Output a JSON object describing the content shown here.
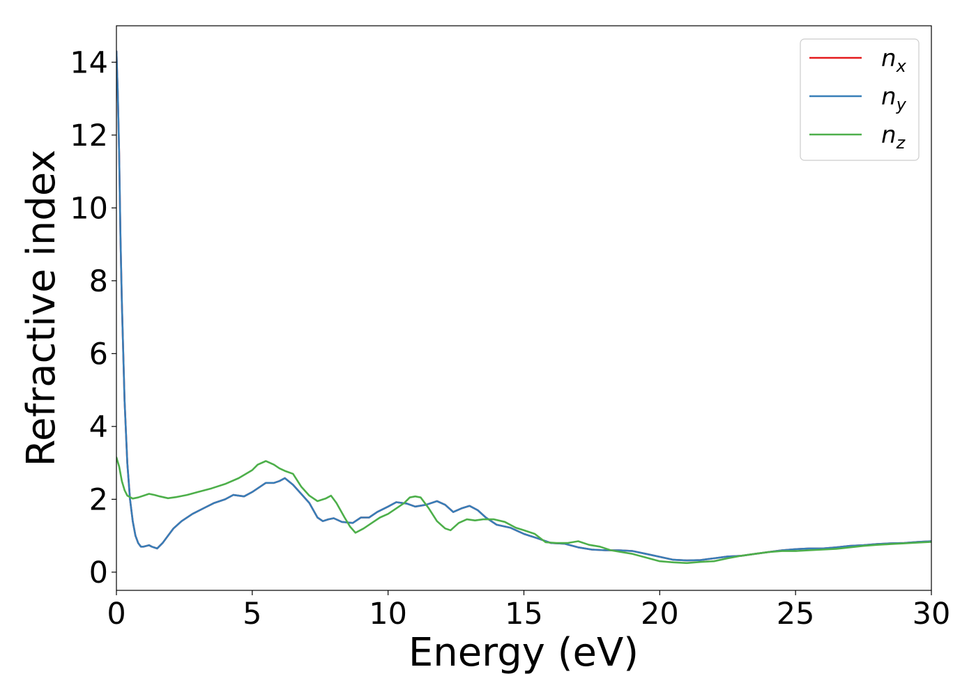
{
  "chart_data": {
    "type": "line",
    "title": "",
    "xlabel": "Energy (eV)",
    "ylabel": "Refractive index",
    "xlim": [
      0,
      30
    ],
    "ylim": [
      -0.5,
      15
    ],
    "xticks": [
      0,
      5,
      10,
      15,
      20,
      25,
      30
    ],
    "yticks": [
      0,
      2,
      4,
      6,
      8,
      10,
      12,
      14
    ],
    "grid": false,
    "legend_position": "top-right",
    "series": [
      {
        "name": "n",
        "subscript": "x",
        "color": "#e41a1c",
        "x": [
          0.0,
          0.05,
          0.1,
          0.15,
          0.2,
          0.3,
          0.4,
          0.5,
          0.6,
          0.7,
          0.8,
          0.9,
          1.0,
          1.1,
          1.2,
          1.3,
          1.5,
          1.7,
          1.9,
          2.1,
          2.4,
          2.8,
          3.2,
          3.6,
          4.0,
          4.3,
          4.7,
          5.0,
          5.3,
          5.5,
          5.8,
          6.0,
          6.2,
          6.5,
          6.8,
          7.1,
          7.4,
          7.6,
          7.8,
          8.0,
          8.3,
          8.7,
          9.0,
          9.3,
          9.6,
          10.0,
          10.3,
          10.7,
          11.0,
          11.4,
          11.8,
          12.1,
          12.4,
          12.7,
          13.0,
          13.3,
          13.6,
          14.0,
          14.5,
          15.0,
          15.5,
          16.0,
          16.5,
          17.0,
          17.5,
          18.0,
          18.5,
          19.0,
          19.5,
          20.0,
          20.5,
          21.0,
          21.5,
          22.0,
          22.5,
          23.0,
          23.5,
          24.0,
          24.5,
          25.0,
          25.5,
          26.0,
          26.5,
          27.0,
          27.5,
          28.0,
          28.5,
          29.0,
          29.5,
          30.0
        ],
        "y": [
          14.3,
          13.2,
          11.5,
          9.2,
          7.4,
          4.7,
          3.0,
          2.0,
          1.4,
          1.0,
          0.8,
          0.7,
          0.7,
          0.72,
          0.74,
          0.7,
          0.65,
          0.8,
          1.0,
          1.2,
          1.4,
          1.6,
          1.75,
          1.9,
          2.0,
          2.12,
          2.08,
          2.2,
          2.35,
          2.45,
          2.45,
          2.5,
          2.58,
          2.4,
          2.15,
          1.9,
          1.5,
          1.4,
          1.45,
          1.48,
          1.38,
          1.35,
          1.5,
          1.5,
          1.65,
          1.8,
          1.92,
          1.88,
          1.8,
          1.85,
          1.95,
          1.85,
          1.65,
          1.75,
          1.82,
          1.7,
          1.5,
          1.3,
          1.22,
          1.05,
          0.93,
          0.8,
          0.78,
          0.68,
          0.62,
          0.6,
          0.6,
          0.58,
          0.5,
          0.42,
          0.34,
          0.32,
          0.33,
          0.38,
          0.43,
          0.45,
          0.5,
          0.55,
          0.6,
          0.63,
          0.65,
          0.65,
          0.68,
          0.72,
          0.74,
          0.77,
          0.79,
          0.8,
          0.83,
          0.85
        ]
      },
      {
        "name": "n",
        "subscript": "y",
        "color": "#377eb8",
        "x": [
          0.0,
          0.05,
          0.1,
          0.15,
          0.2,
          0.3,
          0.4,
          0.5,
          0.6,
          0.7,
          0.8,
          0.9,
          1.0,
          1.1,
          1.2,
          1.3,
          1.5,
          1.7,
          1.9,
          2.1,
          2.4,
          2.8,
          3.2,
          3.6,
          4.0,
          4.3,
          4.7,
          5.0,
          5.3,
          5.5,
          5.8,
          6.0,
          6.2,
          6.5,
          6.8,
          7.1,
          7.4,
          7.6,
          7.8,
          8.0,
          8.3,
          8.7,
          9.0,
          9.3,
          9.6,
          10.0,
          10.3,
          10.7,
          11.0,
          11.4,
          11.8,
          12.1,
          12.4,
          12.7,
          13.0,
          13.3,
          13.6,
          14.0,
          14.5,
          15.0,
          15.5,
          16.0,
          16.5,
          17.0,
          17.5,
          18.0,
          18.5,
          19.0,
          19.5,
          20.0,
          20.5,
          21.0,
          21.5,
          22.0,
          22.5,
          23.0,
          23.5,
          24.0,
          24.5,
          25.0,
          25.5,
          26.0,
          26.5,
          27.0,
          27.5,
          28.0,
          28.5,
          29.0,
          29.5,
          30.0
        ],
        "y": [
          14.3,
          13.2,
          11.5,
          9.2,
          7.4,
          4.7,
          3.0,
          2.0,
          1.4,
          1.0,
          0.8,
          0.7,
          0.7,
          0.72,
          0.74,
          0.7,
          0.65,
          0.8,
          1.0,
          1.2,
          1.4,
          1.6,
          1.75,
          1.9,
          2.0,
          2.12,
          2.08,
          2.2,
          2.35,
          2.45,
          2.45,
          2.5,
          2.58,
          2.4,
          2.15,
          1.9,
          1.5,
          1.4,
          1.45,
          1.48,
          1.38,
          1.35,
          1.5,
          1.5,
          1.65,
          1.8,
          1.92,
          1.88,
          1.8,
          1.85,
          1.95,
          1.85,
          1.65,
          1.75,
          1.82,
          1.7,
          1.5,
          1.3,
          1.22,
          1.05,
          0.93,
          0.8,
          0.78,
          0.68,
          0.62,
          0.6,
          0.6,
          0.58,
          0.5,
          0.42,
          0.34,
          0.32,
          0.33,
          0.38,
          0.43,
          0.45,
          0.5,
          0.55,
          0.6,
          0.63,
          0.65,
          0.65,
          0.68,
          0.72,
          0.74,
          0.77,
          0.79,
          0.8,
          0.83,
          0.85
        ]
      },
      {
        "name": "n",
        "subscript": "z",
        "color": "#4daf4a",
        "x": [
          0.0,
          0.1,
          0.2,
          0.3,
          0.4,
          0.6,
          0.8,
          1.0,
          1.2,
          1.4,
          1.6,
          1.9,
          2.2,
          2.6,
          3.0,
          3.5,
          4.0,
          4.5,
          5.0,
          5.2,
          5.5,
          5.8,
          6.0,
          6.2,
          6.5,
          6.8,
          7.1,
          7.4,
          7.7,
          7.9,
          8.1,
          8.4,
          8.6,
          8.8,
          9.1,
          9.4,
          9.7,
          10.0,
          10.3,
          10.6,
          10.8,
          11.0,
          11.2,
          11.5,
          11.8,
          12.1,
          12.3,
          12.6,
          12.9,
          13.2,
          13.5,
          13.9,
          14.3,
          14.7,
          15.0,
          15.4,
          15.8,
          16.2,
          16.6,
          17.0,
          17.4,
          17.8,
          18.2,
          18.6,
          19.0,
          19.5,
          20.0,
          20.5,
          21.0,
          21.5,
          22.0,
          22.5,
          23.0,
          23.5,
          24.0,
          24.5,
          25.0,
          25.5,
          26.0,
          26.5,
          27.0,
          27.5,
          28.0,
          28.5,
          29.0,
          29.5,
          30.0
        ],
        "y": [
          3.15,
          2.9,
          2.5,
          2.25,
          2.1,
          2.02,
          2.05,
          2.1,
          2.15,
          2.12,
          2.08,
          2.03,
          2.06,
          2.12,
          2.2,
          2.3,
          2.42,
          2.58,
          2.8,
          2.95,
          3.05,
          2.95,
          2.85,
          2.78,
          2.7,
          2.35,
          2.1,
          1.95,
          2.02,
          2.1,
          1.9,
          1.5,
          1.25,
          1.08,
          1.2,
          1.35,
          1.5,
          1.6,
          1.75,
          1.9,
          2.05,
          2.08,
          2.05,
          1.75,
          1.4,
          1.2,
          1.15,
          1.35,
          1.45,
          1.42,
          1.45,
          1.45,
          1.38,
          1.22,
          1.15,
          1.05,
          0.82,
          0.8,
          0.8,
          0.85,
          0.75,
          0.7,
          0.6,
          0.55,
          0.5,
          0.4,
          0.3,
          0.27,
          0.25,
          0.28,
          0.3,
          0.38,
          0.45,
          0.5,
          0.55,
          0.58,
          0.58,
          0.6,
          0.62,
          0.64,
          0.68,
          0.72,
          0.75,
          0.77,
          0.79,
          0.81,
          0.83
        ]
      }
    ]
  }
}
